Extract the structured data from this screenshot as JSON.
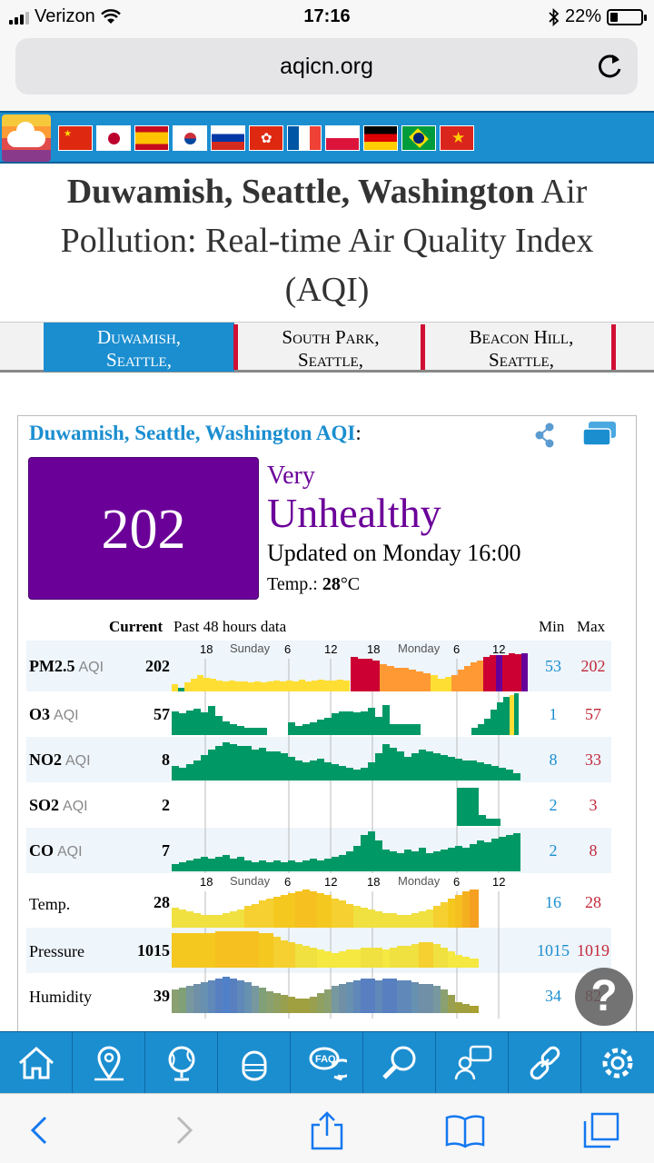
{
  "status": {
    "carrier": "Verizon",
    "time": "17:16",
    "battery": "22%"
  },
  "browser": {
    "url": "aqicn.org"
  },
  "title": {
    "bold": "Duwamish, Seattle, Washington",
    "rest_line1": " Air",
    "line2": "Pollution: Real-time Air Quality Index",
    "line3": "(AQI)"
  },
  "tabs": [
    {
      "line1": "Duwamish,",
      "line2": "Seattle,"
    },
    {
      "line1": "South Park,",
      "line2": "Seattle,"
    },
    {
      "line1": "Beacon Hill,",
      "line2": "Seattle,"
    }
  ],
  "card": {
    "title": "Duwamish, Seattle, Washington AQI",
    "colon": ":",
    "aqi": "202",
    "level_small": "Very",
    "level_big": "Unhealthy",
    "updated": "Updated on Monday 16:00",
    "temp_label": "Temp.: ",
    "temp_value": "28",
    "temp_unit": "°C",
    "header_current": "Current",
    "header_past": "Past 48 hours data",
    "header_min": "Min",
    "header_max": "Max",
    "axis_labels": {
      "t18a": "18",
      "sunday": "Sunday",
      "t6a": "6",
      "t12a": "12",
      "t18b": "18",
      "monday": "Monday",
      "t6b": "6",
      "t12b": "12"
    }
  },
  "rows": [
    {
      "name": "PM2.5",
      "unit": "AQI",
      "current": "202",
      "min": "53",
      "max": "202"
    },
    {
      "name": "O3",
      "unit": "AQI",
      "current": "57",
      "min": "1",
      "max": "57"
    },
    {
      "name": "NO2",
      "unit": "AQI",
      "current": "8",
      "min": "8",
      "max": "33"
    },
    {
      "name": "SO2",
      "unit": "AQI",
      "current": "2",
      "min": "2",
      "max": "3"
    },
    {
      "name": "CO",
      "unit": "AQI",
      "current": "7",
      "min": "2",
      "max": "8"
    },
    {
      "name": "Temp.",
      "unit": "",
      "current": "28",
      "min": "16",
      "max": "28"
    },
    {
      "name": "Pressure",
      "unit": "",
      "current": "1015",
      "min": "1015",
      "max": "1019"
    },
    {
      "name": "Humidity",
      "unit": "",
      "current": "39",
      "min": "34",
      "max": "82"
    }
  ],
  "help": "?",
  "colors": {
    "brand_blue": "#1b8ed0",
    "very_unhealthy": "#6b0099",
    "max_red": "#c3283b",
    "good_green": "#009966"
  }
}
